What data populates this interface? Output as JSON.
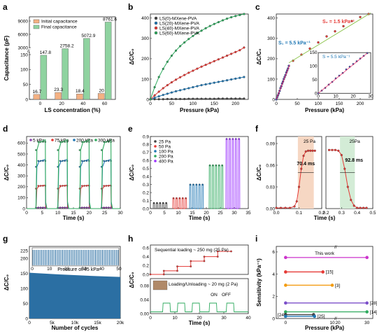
{
  "chart_data": [
    {
      "panel": "a",
      "type": "bar",
      "xlabel": "LS concentration (%)",
      "ylabel": "Capacitance (pF)",
      "categories": [
        "0",
        "20",
        "40",
        "60"
      ],
      "series": [
        {
          "name": "Initial capacitance",
          "values": [
            16.7,
            23.3,
            18.4,
            20
          ],
          "color": "#f4b183"
        },
        {
          "name": "Final capacitance",
          "values": [
            147.8,
            2758.2,
            5072.9,
            8761.6
          ],
          "color": "#8fd3a0"
        }
      ],
      "bar_labels": [
        "16.7",
        "23.3",
        "18.4",
        "20",
        "147.8",
        "2758.2",
        "5072.9",
        "8761.6"
      ],
      "yticks_lower": [
        "0",
        "50",
        "100",
        "150"
      ],
      "yticks_upper": [
        "3000",
        "6000",
        "9000"
      ],
      "axis_break": "//"
    },
    {
      "panel": "b",
      "type": "line",
      "xlabel": "Pressure (kPa)",
      "ylabel": "ΔC/C₀",
      "xlim": [
        0,
        230
      ],
      "ylim": [
        0,
        400
      ],
      "xticks": [
        "0",
        "50",
        "100",
        "150",
        "200"
      ],
      "yticks": [
        "0",
        "100",
        "200",
        "300",
        "400"
      ],
      "legend_position": "top-left",
      "series": [
        {
          "name": "LS(0)-MXene-PVA",
          "color": "#444444",
          "x": [
            0,
            10,
            20,
            30,
            40,
            50,
            60,
            70,
            80,
            90,
            100,
            110,
            120,
            130,
            140,
            150,
            160,
            170,
            180,
            190,
            200,
            210,
            220
          ],
          "y": [
            0,
            1,
            1,
            1,
            2,
            2,
            2,
            2,
            2,
            3,
            3,
            3,
            3,
            3,
            3,
            3,
            4,
            4,
            4,
            4,
            4,
            4,
            4
          ]
        },
        {
          "name": "LS(20)-MXene-PVA",
          "color": "#1f77b4",
          "x": [
            0,
            10,
            20,
            30,
            40,
            50,
            60,
            70,
            80,
            90,
            100,
            110,
            120,
            130,
            140,
            150,
            160,
            170,
            180,
            190,
            200,
            210,
            220
          ],
          "y": [
            0,
            8,
            15,
            22,
            28,
            34,
            40,
            45,
            50,
            55,
            60,
            65,
            70,
            74,
            78,
            82,
            86,
            90,
            94,
            98,
            102,
            106,
            110
          ]
        },
        {
          "name": "LS(40)-MXene-PVA",
          "color": "#e53935",
          "x": [
            0,
            10,
            20,
            30,
            40,
            50,
            60,
            70,
            80,
            90,
            100,
            110,
            120,
            130,
            140,
            150,
            160,
            170,
            180,
            190,
            200,
            210,
            220
          ],
          "y": [
            0,
            20,
            38,
            55,
            70,
            84,
            97,
            109,
            120,
            131,
            141,
            151,
            161,
            170,
            179,
            188,
            197,
            206,
            215,
            224,
            233,
            242,
            255
          ]
        },
        {
          "name": "LS(60)-MXene-PVA",
          "color": "#2eaa5e",
          "x": [
            0,
            10,
            20,
            30,
            40,
            50,
            60,
            70,
            80,
            90,
            100,
            110,
            120,
            130,
            140,
            150,
            160,
            170,
            180,
            190,
            200,
            210,
            220
          ],
          "y": [
            0,
            60,
            110,
            150,
            185,
            215,
            240,
            262,
            280,
            297,
            312,
            326,
            338,
            350,
            361,
            371,
            380,
            389,
            397,
            404,
            410,
            415,
            420
          ]
        }
      ]
    },
    {
      "panel": "c",
      "type": "scatter",
      "xlabel": "Pressure (kPa)",
      "ylabel": "ΔC/C₀",
      "xlim": [
        0,
        230
      ],
      "ylim": [
        0,
        420
      ],
      "xticks": [
        "0",
        "50",
        "100",
        "150",
        "200"
      ],
      "yticks": [
        "0",
        "100",
        "200",
        "300",
        "400"
      ],
      "annotations": [
        "S₂ = 1.5 kPa⁻¹",
        "S₁ = 5.5 kPa⁻¹"
      ],
      "series": [
        {
          "name": "low",
          "color": "#3f51b5",
          "x": [
            0,
            2,
            4,
            6,
            8,
            10,
            12,
            14,
            16,
            18,
            20,
            22,
            24,
            26,
            28,
            30
          ],
          "y": [
            0,
            10,
            20,
            30,
            42,
            55,
            65,
            78,
            88,
            100,
            110,
            120,
            132,
            142,
            152,
            165
          ]
        },
        {
          "name": "high",
          "color": "#e53935",
          "x": [
            40,
            60,
            80,
            100,
            120,
            140,
            160,
            180,
            200,
            220
          ],
          "y": [
            190,
            220,
            250,
            280,
            310,
            335,
            360,
            385,
            405,
            420
          ]
        }
      ],
      "inset": {
        "label": "S = 5.5 kPa⁻¹",
        "xlim": [
          0,
          30
        ],
        "ylim": [
          0,
          150
        ],
        "xticks": [
          "0",
          "10",
          "20",
          "30"
        ],
        "yticks": [
          "0",
          "50",
          "100",
          "150"
        ],
        "x": [
          0,
          2,
          4,
          6,
          8,
          10,
          12,
          14,
          16,
          18,
          20,
          22,
          24,
          26,
          28
        ],
        "y": [
          0,
          10,
          20,
          32,
          42,
          55,
          65,
          75,
          88,
          98,
          108,
          118,
          128,
          138,
          148
        ]
      }
    },
    {
      "panel": "d",
      "type": "line",
      "xlabel": "Time (s)",
      "ylabel": "ΔC/C₀",
      "xlim": [
        0,
        30
      ],
      "ylim": [
        0,
        650
      ],
      "xticks": [
        "0",
        "5",
        "10",
        "15",
        "20",
        "25",
        "30"
      ],
      "yticks": [
        "0",
        "100",
        "200",
        "300",
        "400",
        "500",
        "600"
      ],
      "series": [
        {
          "name": "5 kPa",
          "color": "#8e44ad",
          "peak": 10
        },
        {
          "name": "75 kPa",
          "color": "#e53935",
          "peak": 215
        },
        {
          "name": "200 kPa",
          "color": "#1f77b4",
          "peak": 450
        },
        {
          "name": "300 kPa",
          "color": "#2eaa5e",
          "peak": 630
        }
      ],
      "cycles": [
        3,
        10,
        17,
        24
      ]
    },
    {
      "panel": "e",
      "type": "line",
      "xlabel": "Time (s)",
      "ylabel": "ΔC/C₀",
      "xlim": [
        0,
        35
      ],
      "ylim": [
        0,
        0.9
      ],
      "xticks": [
        "0",
        "5",
        "10",
        "15",
        "20",
        "25",
        "30",
        "35"
      ],
      "yticks": [
        "0.0",
        "0.1",
        "0.2",
        "0.3",
        "0.4",
        "0.5",
        "0.6",
        "0.7",
        "0.8",
        "0.9"
      ],
      "series": [
        {
          "name": "25 Pa",
          "color": "#444444",
          "start": 1,
          "peak": 0.07
        },
        {
          "name": "50 Pa",
          "color": "#e53935",
          "start": 8,
          "peak": 0.13
        },
        {
          "name": "100 Pa",
          "color": "#1f77b4",
          "start": 14,
          "peak": 0.3
        },
        {
          "name": "200 Pa",
          "color": "#2eaa5e",
          "start": 21,
          "peak": 0.54
        },
        {
          "name": "400 Pa",
          "color": "#9b30ff",
          "start": 27,
          "peak": 0.87
        }
      ]
    },
    {
      "panel": "f",
      "type": "line",
      "ylabel": "ΔC/C₀",
      "xlabel": "Time (s)",
      "yticks": [
        "0.00",
        "0.03",
        "0.06",
        "0.09"
      ],
      "left": {
        "name": "25 Pa",
        "xlim": [
          0,
          0.2
        ],
        "xticks": [
          "0.0",
          "0.1",
          "0.2"
        ],
        "x": [
          0,
          0.02,
          0.04,
          0.06,
          0.08,
          0.09,
          0.1,
          0.11,
          0.12,
          0.13,
          0.14,
          0.15,
          0.16,
          0.17
        ],
        "y": [
          0.001,
          0.001,
          0.001,
          0.001,
          0.003,
          0.01,
          0.03,
          0.055,
          0.073,
          0.079,
          0.08,
          0.08,
          0.08,
          0.08
        ],
        "annotation": "70.4 ms"
      },
      "right": {
        "name": "25Pa",
        "xlim": [
          0.2,
          0.5
        ],
        "xticks": [
          "0.2",
          "0.3",
          "0.4",
          "0.5"
        ],
        "x": [
          0.22,
          0.24,
          0.26,
          0.28,
          0.3,
          0.32,
          0.34,
          0.36,
          0.38,
          0.4,
          0.42,
          0.44,
          0.46
        ],
        "y": [
          0.081,
          0.081,
          0.081,
          0.08,
          0.074,
          0.055,
          0.03,
          0.012,
          0.004,
          0.001,
          0.001,
          0.001,
          0.001
        ],
        "annotation": "92.8 ms"
      }
    },
    {
      "panel": "g",
      "type": "area",
      "xlabel": "Number of cycles",
      "ylabel": "ΔC/C₀",
      "xticks": [
        "0",
        "5k",
        "10k",
        "15k",
        "20k"
      ],
      "yticks": [
        "0",
        "50",
        "100",
        "150",
        "200",
        "225"
      ],
      "annotation": "Pressure of 45 kPa",
      "inset": {
        "xticks": [
          "0",
          "10",
          "20",
          "30",
          "40",
          "50"
        ],
        "yticks": [
          "0",
          "50",
          "100",
          "150"
        ],
        "peak": 150
      },
      "level": 150
    },
    {
      "panel": "h",
      "type": "line",
      "xlabel": "Time (s)",
      "ylabel": "ΔC/C₀",
      "xticks": [
        "0",
        "10",
        "20",
        "30",
        "40"
      ],
      "top": {
        "label": "Sequential loading ~ 250 mg (25 Pa)",
        "yticks": [
          "0.0",
          "0.2",
          "0.4",
          "0.6"
        ],
        "steps": [
          0,
          0.08,
          0.18,
          0.3,
          0.4,
          0.52
        ]
      },
      "bottom": {
        "label": "Loading/Unloading ~ 20 mg (2 Pa)",
        "yticks": [
          "0.00",
          "0.04",
          "0.08"
        ],
        "on": "ON",
        "off": "OFF"
      }
    },
    {
      "panel": "i",
      "type": "scatter",
      "xlabel": "Pressure (kPa)",
      "ylabel": "Sensitivity (kPa⁻¹)",
      "xticks": [
        "0",
        "10",
        "20",
        "30"
      ],
      "yticks": [
        "0",
        "2",
        "4",
        "6"
      ],
      "series": [
        {
          "name": "This work",
          "color": "#cc33cc",
          "x0": 0,
          "x1": 30,
          "y": 5.5
        },
        {
          "name": "[15]",
          "color": "#e53935",
          "x0": 0,
          "x1": 8,
          "y": 4.2
        },
        {
          "name": "[3]",
          "color": "#f39c12",
          "x0": 0,
          "x1": 10,
          "y": 3.0
        },
        {
          "name": "[28]",
          "color": "#7b4fc9",
          "x0": 0,
          "x1": 30,
          "y": 1.4
        },
        {
          "name": "[14]",
          "color": "#2eaa5e",
          "x0": 0,
          "x1": 30,
          "y": 0.6
        },
        {
          "name": "[24]",
          "color": "#444444",
          "x0": 0,
          "x1": 6,
          "y": 0.35
        },
        {
          "name": "[25]",
          "color": "#1f77b4",
          "x0": 0,
          "x1": 12,
          "y": 0.2
        }
      ]
    }
  ],
  "panel_letters": [
    "a",
    "b",
    "c",
    "d",
    "e",
    "f",
    "g",
    "h",
    "i"
  ]
}
